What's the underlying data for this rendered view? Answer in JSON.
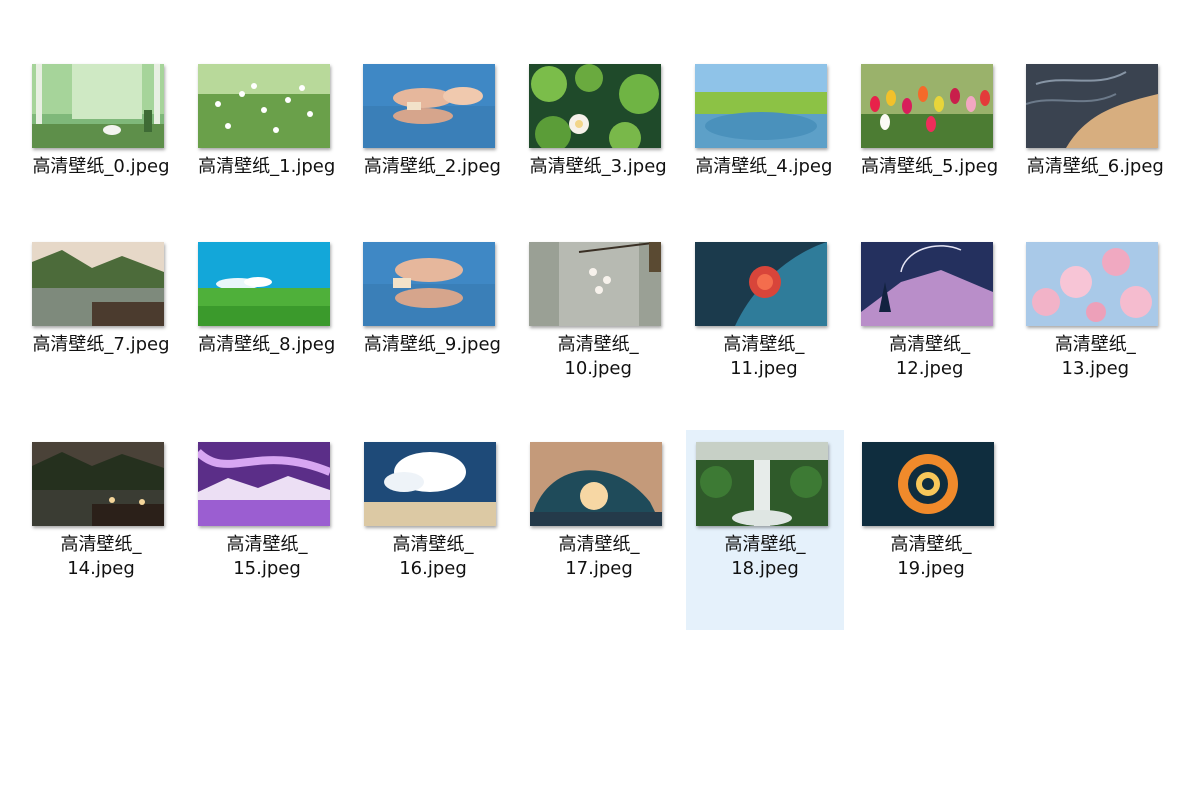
{
  "files": [
    {
      "name": "高清壁纸_0.jpeg"
    },
    {
      "name": "高清壁纸_1.jpeg"
    },
    {
      "name": "高清壁纸_2.jpeg"
    },
    {
      "name": "高清壁纸_3.jpeg"
    },
    {
      "name": "高清壁纸_4.jpeg"
    },
    {
      "name": "高清壁纸_5.jpeg"
    },
    {
      "name": "高清壁纸_6.jpeg"
    },
    {
      "name": "高清壁纸_7.jpeg"
    },
    {
      "name": "高清壁纸_8.jpeg"
    },
    {
      "name": "高清壁纸_9.jpeg"
    },
    {
      "name": "高清壁纸_10.jpeg"
    },
    {
      "name": "高清壁纸_11.jpeg"
    },
    {
      "name": "高清壁纸_12.jpeg"
    },
    {
      "name": "高清壁纸_13.jpeg"
    },
    {
      "name": "高清壁纸_14.jpeg"
    },
    {
      "name": "高清壁纸_15.jpeg"
    },
    {
      "name": "高清壁纸_16.jpeg"
    },
    {
      "name": "高清壁纸_17.jpeg"
    },
    {
      "name": "高清壁纸_18.jpeg",
      "selected": true
    },
    {
      "name": "高清壁纸_19.jpeg"
    }
  ],
  "colors": {
    "selection_background": "#e5f1fb",
    "label_text": "#111111"
  }
}
